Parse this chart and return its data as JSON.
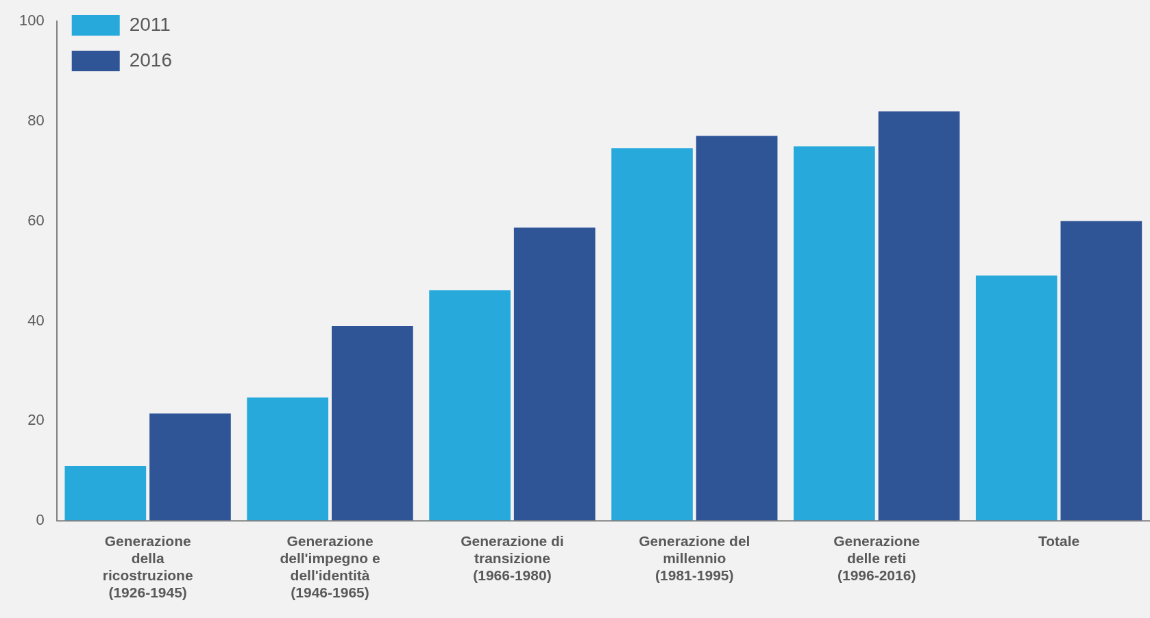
{
  "chart_data": {
    "type": "bar",
    "categories": [
      "Generazione della ricostruzione (1926-1945)",
      "Generazione dell'impegno e dell'identità (1946-1965)",
      "Generazione di transizione (1966-1980)",
      "Generazione del millennio (1981-1995)",
      "Generazione delle reti (1996-2016)",
      "Totale"
    ],
    "series": [
      {
        "name": "2011",
        "color": "#27a9dc",
        "values": [
          11.0,
          24.7,
          46.2,
          74.6,
          75.0,
          49.1
        ]
      },
      {
        "name": "2016",
        "color": "#2f5597",
        "values": [
          21.5,
          39.0,
          58.7,
          77.1,
          82.0,
          60.0
        ]
      }
    ],
    "ylim": [
      0,
      100
    ],
    "yticks": [
      0,
      20,
      40,
      60,
      80,
      100
    ],
    "grid": false,
    "legend": "top left"
  }
}
